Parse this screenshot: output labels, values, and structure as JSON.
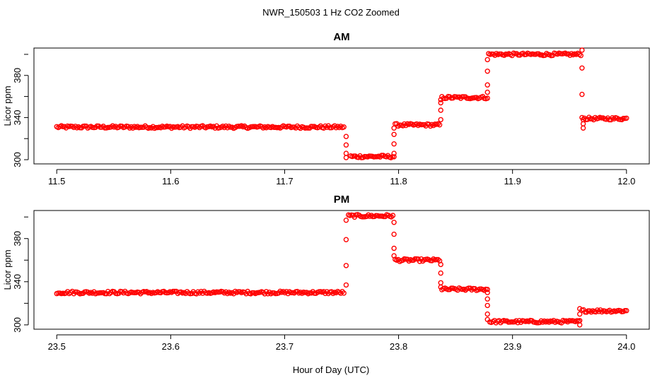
{
  "title": "NWR_150503  1 Hz CO2 Zoomed",
  "xlabel": "Hour of Day (UTC)",
  "colors": {
    "points": "#ff0000",
    "axes": "#000000",
    "background": "#ffffff"
  },
  "chart_data": [
    {
      "type": "scatter",
      "title": "AM",
      "xlabel": "",
      "ylabel": "Licor ppm",
      "xlim": [
        11.48,
        12.02
      ],
      "ylim": [
        296,
        406
      ],
      "xticks": [
        11.5,
        11.6,
        11.7,
        11.8,
        11.9,
        12.0
      ],
      "xtick_labels": [
        "11.5",
        "11.6",
        "11.7",
        "11.8",
        "11.9",
        "12.0"
      ],
      "yticks": [
        300,
        340,
        380
      ],
      "ytick_labels": [
        "300",
        "340",
        "380"
      ],
      "grid": false,
      "series": [
        {
          "marker": "open-circle",
          "color": "#ff0000",
          "segments": [
            {
              "x0": 11.5,
              "x1": 11.752,
              "y": 331
            },
            {
              "x0": 11.758,
              "x1": 11.796,
              "y": 303
            },
            {
              "x0": 11.797,
              "x1": 11.836,
              "y": 333
            },
            {
              "x0": 11.838,
              "x1": 11.878,
              "y": 359
            },
            {
              "x0": 11.879,
              "x1": 11.96,
              "y": 400
            },
            {
              "x0": 11.963,
              "x1": 12.0,
              "y": 339
            }
          ],
          "transitions": [
            {
              "x": 11.754,
              "y": [
                322,
                314,
                306,
                302
              ]
            },
            {
              "x": 11.796,
              "y": [
                306,
                315,
                324,
                330
              ]
            },
            {
              "x": 11.837,
              "y": [
                338,
                347,
                354,
                357
              ]
            },
            {
              "x": 11.878,
              "y": [
                364,
                371,
                384,
                395
              ]
            },
            {
              "x": 11.961,
              "y": [
                404,
                387,
                362,
                340
              ]
            },
            {
              "x": 11.962,
              "y": [
                330,
                334,
                338
              ]
            }
          ]
        }
      ]
    },
    {
      "type": "scatter",
      "title": "PM",
      "xlabel": "",
      "ylabel": "Licor ppm",
      "xlim": [
        23.48,
        24.02
      ],
      "ylim": [
        296,
        406
      ],
      "xticks": [
        23.5,
        23.6,
        23.7,
        23.8,
        23.9,
        24.0
      ],
      "xtick_labels": [
        "23.5",
        "23.6",
        "23.7",
        "23.8",
        "23.9",
        "24.0"
      ],
      "yticks": [
        300,
        340,
        380
      ],
      "ytick_labels": [
        "300",
        "340",
        "380"
      ],
      "grid": false,
      "series": [
        {
          "marker": "open-circle",
          "color": "#ff0000",
          "segments": [
            {
              "x0": 23.5,
              "x1": 23.752,
              "y": 330
            },
            {
              "x0": 23.756,
              "x1": 23.795,
              "y": 401
            },
            {
              "x0": 23.797,
              "x1": 23.836,
              "y": 360
            },
            {
              "x0": 23.838,
              "x1": 23.878,
              "y": 333
            },
            {
              "x0": 23.88,
              "x1": 23.958,
              "y": 303
            },
            {
              "x0": 23.961,
              "x1": 24.0,
              "y": 313
            }
          ],
          "transitions": [
            {
              "x": 23.754,
              "y": [
                337,
                355,
                379,
                397
              ]
            },
            {
              "x": 23.796,
              "y": [
                395,
                384,
                371,
                364
              ]
            },
            {
              "x": 23.837,
              "y": [
                356,
                348,
                339,
                335
              ]
            },
            {
              "x": 23.878,
              "y": [
                330,
                324,
                318,
                310,
                305
              ]
            },
            {
              "x": 23.959,
              "y": [
                300,
                304,
                310,
                315
              ]
            }
          ]
        }
      ]
    }
  ]
}
